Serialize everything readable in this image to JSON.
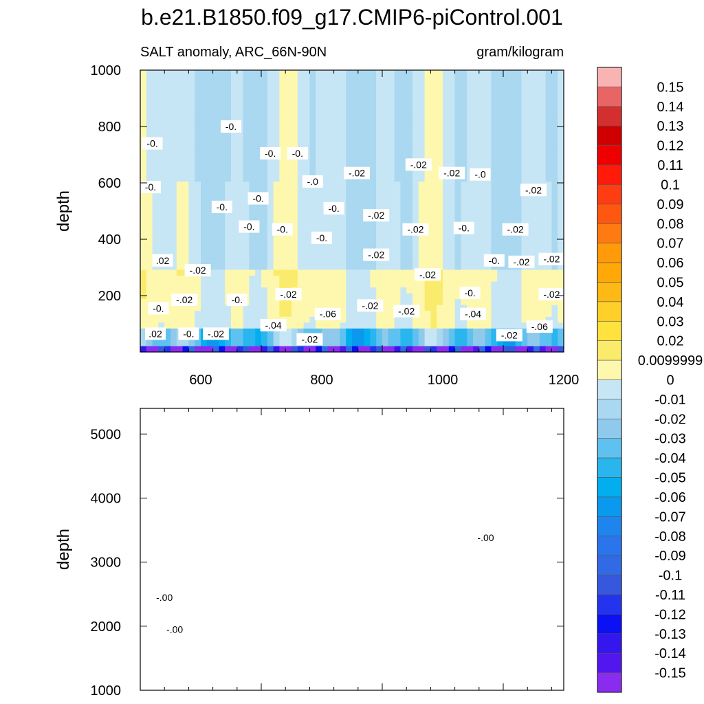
{
  "chart_data": [
    {
      "type": "contour",
      "title": "b.e21.B1850.f09_g17.CMIP6-piControl.001",
      "left_string": "SALT anomaly, ARC_66N-90N",
      "right_string": "gram/kilogram",
      "xlabel": "",
      "ylabel": "depth",
      "xlim": [
        500,
        1200
      ],
      "ylim": [
        1000,
        0
      ],
      "x_ticks": [
        "600",
        "800",
        "1000",
        "1200"
      ],
      "y_ticks": [
        "200",
        "400",
        "600",
        "800",
        "1000"
      ],
      "contour_labels": [
        {
          "text": ".02",
          "x": 525,
          "y": 65
        },
        {
          "text": "-0.",
          "x": 580,
          "y": 65
        },
        {
          "text": "-.02",
          "x": 625,
          "y": 65
        },
        {
          "text": "-.04",
          "x": 720,
          "y": 95
        },
        {
          "text": "-.02",
          "x": 780,
          "y": 45
        },
        {
          "text": "-.06",
          "x": 810,
          "y": 135
        },
        {
          "text": "-.02",
          "x": 880,
          "y": 165
        },
        {
          "text": "-.02",
          "x": 940,
          "y": 145
        },
        {
          "text": "-.04",
          "x": 1050,
          "y": 135
        },
        {
          "text": "-.02",
          "x": 1110,
          "y": 60
        },
        {
          "text": "-.06",
          "x": 1160,
          "y": 90
        },
        {
          "text": "-0.",
          "x": 530,
          "y": 155
        },
        {
          "text": "-.02",
          "x": 573,
          "y": 185
        },
        {
          "text": "-0.",
          "x": 660,
          "y": 185
        },
        {
          "text": "-.02",
          "x": 745,
          "y": 205
        },
        {
          "text": "-.02",
          "x": 1180,
          "y": 205
        },
        {
          "text": "-.02",
          "x": 595,
          "y": 290
        },
        {
          "text": ".02",
          "x": 537,
          "y": 325
        },
        {
          "text": "-.02",
          "x": 975,
          "y": 275
        },
        {
          "text": "-0.",
          "x": 1045,
          "y": 210
        },
        {
          "text": "-0.",
          "x": 1085,
          "y": 325
        },
        {
          "text": "-.02",
          "x": 1130,
          "y": 320
        },
        {
          "text": "-.02",
          "x": 1180,
          "y": 330
        },
        {
          "text": "-.02",
          "x": 890,
          "y": 345
        },
        {
          "text": "-0.",
          "x": 800,
          "y": 405
        },
        {
          "text": "-0.",
          "x": 680,
          "y": 445
        },
        {
          "text": "-0.",
          "x": 735,
          "y": 435
        },
        {
          "text": "-.02",
          "x": 955,
          "y": 435
        },
        {
          "text": "-0.",
          "x": 1035,
          "y": 440
        },
        {
          "text": "-.02",
          "x": 1120,
          "y": 435
        },
        {
          "text": "-.02",
          "x": 890,
          "y": 485
        },
        {
          "text": "-0.",
          "x": 820,
          "y": 510
        },
        {
          "text": "-0.",
          "x": 635,
          "y": 515
        },
        {
          "text": "-0.",
          "x": 695,
          "y": 545
        },
        {
          "text": "-.02",
          "x": 1150,
          "y": 575
        },
        {
          "text": "-0.",
          "x": 517,
          "y": 585
        },
        {
          "text": "-.0",
          "x": 785,
          "y": 605
        },
        {
          "text": "-.02",
          "x": 858,
          "y": 635
        },
        {
          "text": "-.02",
          "x": 960,
          "y": 665
        },
        {
          "text": "-.02",
          "x": 1015,
          "y": 635
        },
        {
          "text": "-.0",
          "x": 1062,
          "y": 630
        },
        {
          "text": "-0.",
          "x": 715,
          "y": 705
        },
        {
          "text": "-0.",
          "x": 760,
          "y": 705
        },
        {
          "text": "-0.",
          "x": 520,
          "y": 740
        },
        {
          "text": "-0.",
          "x": 650,
          "y": 800
        }
      ]
    },
    {
      "type": "contour",
      "xlabel": "",
      "ylabel": "depth",
      "xlim": [
        500,
        1200
      ],
      "ylim": [
        5400,
        1000
      ],
      "y_ticks": [
        "1000",
        "2000",
        "3000",
        "4000",
        "5000"
      ],
      "contour_labels": [
        {
          "text": "-.00",
          "x": 557,
          "y": 1950
        },
        {
          "text": "-.00",
          "x": 540,
          "y": 2450
        },
        {
          "text": "-.00",
          "x": 1071,
          "y": 3380
        }
      ]
    }
  ],
  "colorbar": {
    "labels": [
      "0.15",
      "0.14",
      "0.13",
      "0.12",
      "0.11",
      "0.1",
      "0.09",
      "0.08",
      "0.07",
      "0.06",
      "0.05",
      "0.04",
      "0.03",
      "0.02",
      "0.0099999",
      "0",
      "-0.01",
      "-0.02",
      "-0.03",
      "-0.04",
      "-0.05",
      "-0.06",
      "-0.07",
      "-0.08",
      "-0.09",
      "-0.1",
      "-0.11",
      "-0.12",
      "-0.13",
      "-0.14",
      "-0.15"
    ],
    "colors": [
      "#f8b3b3",
      "#e86565",
      "#d42f2f",
      "#d10000",
      "#ee0000",
      "#ff1a0a",
      "#ff3d13",
      "#ff5710",
      "#ff7a10",
      "#ff9a0a",
      "#ffa808",
      "#ffb914",
      "#ffd02a",
      "#ffe23e",
      "#fbeb6d",
      "#fdf8ad",
      "#c7e6f5",
      "#a9d8f0",
      "#8fc9ec",
      "#5fc1ef",
      "#29b6ee",
      "#02aef0",
      "#0b98ef",
      "#1f85ee",
      "#2a74ec",
      "#3269e4",
      "#3558dd",
      "#2433ee",
      "#0b10f5",
      "#3417ef",
      "#5216ee",
      "#8a2cf0"
    ]
  }
}
